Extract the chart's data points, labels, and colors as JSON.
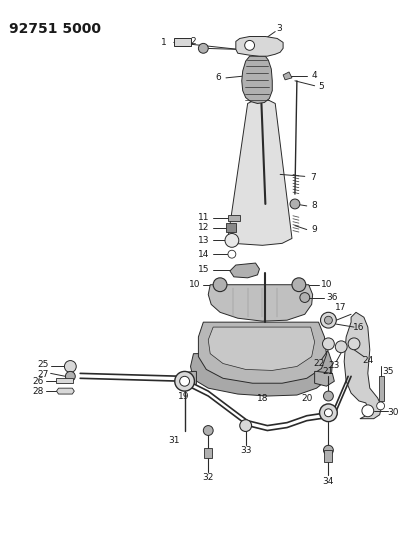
{
  "title": "92751 5000",
  "title_fontsize": 10,
  "title_fontweight": "bold",
  "bg_color": "#ffffff",
  "line_color": "#2a2a2a",
  "label_fontsize": 6.5,
  "fig_width": 4.0,
  "fig_height": 5.33,
  "dpi": 100,
  "gray_light": "#d8d8d8",
  "gray_mid": "#b0b0b0",
  "gray_dark": "#888888"
}
